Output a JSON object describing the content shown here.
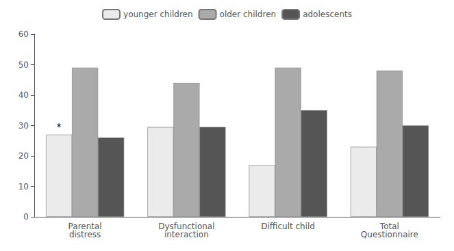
{
  "chart_data": {
    "type": "bar",
    "categories": [
      "Parental\ndistress",
      "Dysfunctional\ninteraction",
      "Difficult child",
      "Total\nQuestionnaire"
    ],
    "series": [
      {
        "name": "younger children",
        "color": "#ebebeb",
        "values": [
          27,
          29.5,
          17,
          23
        ]
      },
      {
        "name": "older children",
        "color": "#aaaaaa",
        "values": [
          49,
          44,
          49,
          48
        ]
      },
      {
        "name": "adolescents",
        "color": "#555555",
        "values": [
          26,
          29.5,
          35,
          30
        ]
      }
    ],
    "annotations": [
      {
        "text": "*",
        "series": "younger children",
        "category": "Parental\ndistress"
      }
    ],
    "ylim": [
      0,
      60
    ],
    "yticks": [
      0,
      10,
      20,
      30,
      40,
      50,
      60
    ],
    "grid": false,
    "legend": "top"
  }
}
